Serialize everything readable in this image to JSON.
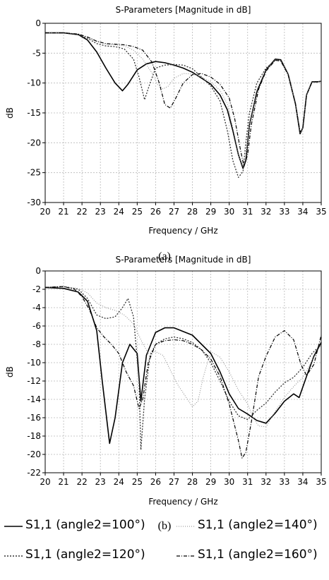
{
  "chart_data": [
    {
      "type": "line",
      "title": "S-Parameters [Magnitude in dB]",
      "xlabel": "Frequency / GHz",
      "ylabel": "dB",
      "caption": "(a)",
      "xlim": [
        20,
        35
      ],
      "ylim": [
        -30,
        0
      ],
      "xticks": [
        20,
        21,
        22,
        23,
        24,
        25,
        26,
        27,
        28,
        29,
        30,
        31,
        32,
        33,
        34,
        35
      ],
      "yticks": [
        0,
        -5,
        -10,
        -15,
        -20,
        -25,
        -30
      ],
      "grid": true,
      "series": [
        {
          "name": "S1,1 (angle2=100°)",
          "style": "solid",
          "x": [
            20,
            21,
            21.8,
            22.3,
            22.8,
            23.3,
            23.8,
            24.2,
            24.5,
            25,
            25.5,
            26,
            26.5,
            27,
            27.5,
            28,
            28.5,
            29,
            29.5,
            29.9,
            30.2,
            30.5,
            30.75,
            30.9,
            31.1,
            31.5,
            32,
            32.5,
            32.8,
            33.2,
            33.6,
            33.85,
            34,
            34.2,
            34.5,
            34.8,
            35
          ],
          "y": [
            -1.6,
            -1.6,
            -1.9,
            -2.8,
            -4.8,
            -7.5,
            -10,
            -11.3,
            -10.2,
            -7.8,
            -6.8,
            -6.4,
            -6.6,
            -7,
            -7.5,
            -8.2,
            -9.2,
            -10.2,
            -12,
            -14.5,
            -18,
            -22,
            -24.3,
            -23,
            -17,
            -11.5,
            -7.8,
            -6,
            -6.1,
            -8.5,
            -13.5,
            -18.5,
            -17.5,
            -12,
            -9.8,
            -9.8,
            -9.7
          ]
        },
        {
          "name": "S1,1 (angle2=120°)",
          "style": "dotted",
          "x": [
            20,
            21,
            21.8,
            22.3,
            22.8,
            23.3,
            23.8,
            24.3,
            24.8,
            25.1,
            25.4,
            25.7,
            26,
            26.5,
            27,
            27.5,
            28,
            28.5,
            29,
            29.5,
            29.9,
            30.2,
            30.5,
            30.75,
            30.9,
            31.1,
            31.5,
            32,
            32.5,
            32.8,
            33.2,
            33.6,
            33.85,
            34,
            34.2,
            34.5,
            34.8,
            35
          ],
          "y": [
            -1.6,
            -1.6,
            -1.9,
            -2.5,
            -3.4,
            -3.8,
            -3.9,
            -4.3,
            -6,
            -9,
            -12.8,
            -10,
            -7.5,
            -7,
            -6.9,
            -7,
            -7.6,
            -9,
            -10.5,
            -13,
            -18,
            -23,
            -25.8,
            -24.8,
            -20,
            -15,
            -10,
            -7.5,
            -6.2,
            -6.3,
            -8.5,
            -13.5,
            -18.3,
            -17.5,
            -12,
            -9.8,
            -9.8,
            -9.7
          ]
        },
        {
          "name": "S1,1 (angle2=140°)",
          "style": "dotted-fine",
          "x": [
            20,
            21,
            21.8,
            22.3,
            22.8,
            23.3,
            23.8,
            24.3,
            24.8,
            25.3,
            25.8,
            26.1,
            26.4,
            26.7,
            27,
            27.5,
            28,
            28.5,
            29,
            29.5,
            29.9,
            30.2,
            30.5,
            30.75,
            30.9,
            31.1,
            31.5,
            32,
            32.5,
            32.8,
            33.2,
            33.6,
            33.85,
            34,
            34.2,
            34.5,
            34.8,
            35
          ],
          "y": [
            -1.6,
            -1.6,
            -1.8,
            -2.3,
            -3,
            -3.5,
            -3.6,
            -3.8,
            -4.5,
            -6,
            -8.3,
            -10.2,
            -11,
            -10.5,
            -9.2,
            -8.4,
            -8.5,
            -9,
            -9.8,
            -11.2,
            -13.5,
            -17.5,
            -22,
            -24,
            -22.5,
            -17,
            -11,
            -7.8,
            -6.1,
            -6.2,
            -8.5,
            -13.5,
            -18.4,
            -17.5,
            -12,
            -9.8,
            -9.8,
            -9.7
          ]
        },
        {
          "name": "S1,1 (angle2=160°)",
          "style": "dash-dot",
          "x": [
            20,
            21,
            21.8,
            22.3,
            22.8,
            23.3,
            23.8,
            24.3,
            24.8,
            25.3,
            25.8,
            26.2,
            26.5,
            26.8,
            27.1,
            27.5,
            28,
            28.5,
            29,
            29.5,
            30,
            30.3,
            30.6,
            30.8,
            31,
            31.2,
            31.6,
            32,
            32.5,
            32.8,
            33.2,
            33.6,
            33.85,
            34,
            34.2,
            34.5,
            34.8,
            35
          ],
          "y": [
            -1.6,
            -1.6,
            -1.8,
            -2.3,
            -3,
            -3.4,
            -3.5,
            -3.6,
            -3.9,
            -4.5,
            -6.5,
            -10,
            -13.6,
            -14.2,
            -12.5,
            -10,
            -8.6,
            -8.4,
            -9,
            -10.2,
            -12.5,
            -16,
            -21,
            -24,
            -22,
            -17,
            -11,
            -8,
            -6.2,
            -6.3,
            -8.6,
            -13.5,
            -18.2,
            -17.5,
            -12,
            -9.8,
            -9.8,
            -9.7
          ]
        }
      ]
    },
    {
      "type": "line",
      "title": "S-Parameters [Magnitude in dB]",
      "xlabel": "Frequency / GHz",
      "ylabel": "dB",
      "caption": "(b)",
      "xlim": [
        20,
        35
      ],
      "ylim": [
        -22,
        0
      ],
      "xticks": [
        20,
        21,
        22,
        23,
        24,
        25,
        26,
        27,
        28,
        29,
        30,
        31,
        32,
        33,
        34,
        35
      ],
      "yticks": [
        0,
        -2,
        -4,
        -6,
        -8,
        -10,
        -12,
        -14,
        -16,
        -18,
        -20,
        -22
      ],
      "grid": true,
      "series": [
        {
          "name": "S1,1 (angle2=100°)",
          "style": "solid",
          "x": [
            20,
            21,
            21.8,
            22.3,
            22.8,
            23.1,
            23.5,
            23.8,
            24.2,
            24.6,
            25,
            25.2,
            25.5,
            26,
            26.5,
            27,
            28,
            29,
            29.5,
            30,
            30.5,
            31,
            31.5,
            32,
            32.5,
            33,
            33.5,
            33.8,
            34.2,
            34.6,
            35
          ],
          "y": [
            -1.8,
            -1.9,
            -2.3,
            -3.3,
            -6.5,
            -12,
            -18.8,
            -16,
            -10,
            -8,
            -9,
            -14.2,
            -9.2,
            -6.7,
            -6.2,
            -6.2,
            -7,
            -9,
            -11,
            -13.4,
            -15,
            -15.6,
            -16.3,
            -16.6,
            -15.5,
            -14.2,
            -13.4,
            -13.8,
            -11.5,
            -9.3,
            -7.8
          ]
        },
        {
          "name": "S1,1 (angle2=120°)",
          "style": "dotted",
          "x": [
            20,
            21,
            21.8,
            22.3,
            22.8,
            23.3,
            23.8,
            24.2,
            24.5,
            24.8,
            25.1,
            25.2,
            25.4,
            25.7,
            26,
            26.5,
            27,
            27.5,
            28,
            28.5,
            29,
            29.5,
            30,
            30.5,
            31,
            31.5,
            32,
            32.5,
            33,
            33.5,
            34,
            34.5,
            35
          ],
          "y": [
            -1.8,
            -1.7,
            -2,
            -3,
            -4.8,
            -5.2,
            -5,
            -4,
            -3,
            -5,
            -12,
            -19.5,
            -14,
            -9.2,
            -8,
            -7.4,
            -7.2,
            -7.4,
            -7.8,
            -8.6,
            -10,
            -12,
            -14.2,
            -15.8,
            -16.2,
            -15.2,
            -14.4,
            -13.2,
            -12.2,
            -11.6,
            -10.5,
            -9,
            -8
          ]
        },
        {
          "name": "S1,1 (angle2=140°)",
          "style": "dotted-fine",
          "x": [
            20,
            21,
            21.8,
            22.3,
            22.8,
            23.3,
            23.8,
            24.3,
            24.8,
            25.2,
            25.6,
            26,
            26.4,
            26.8,
            27.2,
            27.6,
            28,
            28.3,
            28.6,
            29,
            29.5,
            30,
            30.5,
            31,
            31.3,
            31.6,
            32,
            32.5,
            33,
            33.5,
            34,
            34.5,
            35
          ],
          "y": [
            -1.8,
            -1.7,
            -1.9,
            -2.4,
            -3.5,
            -4,
            -4.3,
            -4.8,
            -5.8,
            -7.5,
            -9,
            -8.8,
            -9.2,
            -10.8,
            -12.4,
            -13.6,
            -14.8,
            -14.2,
            -11.5,
            -8.8,
            -9.4,
            -11,
            -13,
            -14.5,
            -16,
            -16.9,
            -17,
            -15.3,
            -13.8,
            -12.6,
            -11.6,
            -9.8,
            -8
          ]
        },
        {
          "name": "S1,1 (angle2=160°)",
          "style": "dash-dot",
          "x": [
            20,
            21,
            21.6,
            22,
            22.4,
            22.8,
            23.2,
            23.6,
            24,
            24.4,
            24.8,
            25.1,
            25.3,
            25.6,
            26,
            26.5,
            27,
            27.5,
            28,
            28.5,
            29,
            29.5,
            30,
            30.5,
            30.7,
            30.9,
            31.2,
            31.6,
            32,
            32.5,
            33,
            33.5,
            33.9,
            34.2,
            34.6,
            35
          ],
          "y": [
            -1.8,
            -1.7,
            -2,
            -2.8,
            -4.2,
            -6.2,
            -7.2,
            -8,
            -9,
            -11,
            -12.5,
            -15,
            -14,
            -10,
            -8,
            -7.6,
            -7.5,
            -7.6,
            -8,
            -8.6,
            -9.6,
            -11.5,
            -14.5,
            -18.5,
            -20.4,
            -19.8,
            -16.5,
            -11.5,
            -9.3,
            -7.2,
            -6.5,
            -7.5,
            -10.2,
            -11.4,
            -10.2,
            -7
          ]
        }
      ]
    }
  ],
  "legend": [
    {
      "label": "S1,1 (angle2=100°)",
      "style": "solid"
    },
    {
      "label": "S1,1 (angle2=140°)",
      "style": "dotted-fine"
    },
    {
      "label": "S1,1 (angle2=120°)",
      "style": "dotted"
    },
    {
      "label": "S1,1 (angle2=160°)",
      "style": "dash-dot"
    }
  ]
}
